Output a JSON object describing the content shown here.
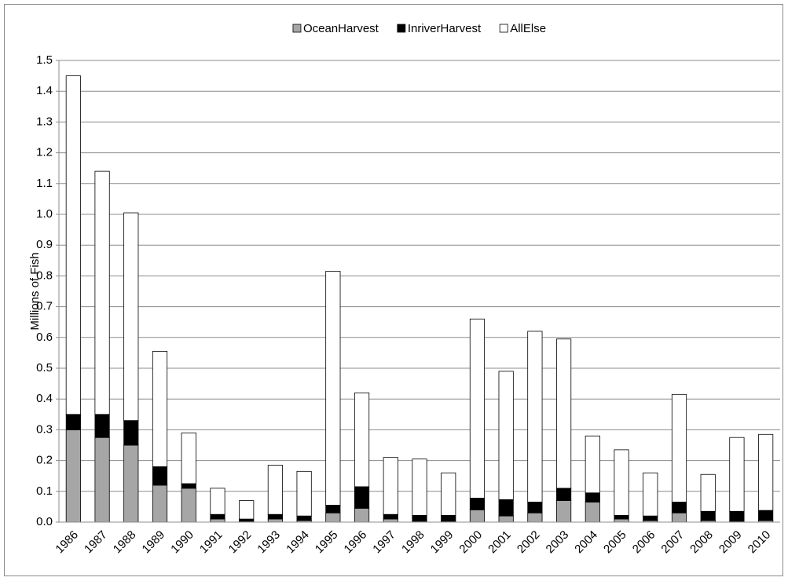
{
  "chart_data": {
    "type": "stacked_bar",
    "y_label": "Millions of Fish",
    "categories": [
      "1986",
      "1987",
      "1988",
      "1989",
      "1990",
      "1991",
      "1992",
      "1993",
      "1994",
      "1995",
      "1996",
      "1997",
      "1998",
      "1999",
      "2000",
      "2001",
      "2002",
      "2003",
      "2004",
      "2005",
      "2006",
      "2007",
      "2008",
      "2009",
      "2010"
    ],
    "series": [
      {
        "name": "OceanHarvest",
        "color": "#a6a6a6",
        "values": [
          0.3,
          0.275,
          0.25,
          0.12,
          0.11,
          0.01,
          0.003,
          0.01,
          0.005,
          0.03,
          0.045,
          0.01,
          0.003,
          0.003,
          0.04,
          0.02,
          0.03,
          0.07,
          0.065,
          0.01,
          0.005,
          0.03,
          0.005,
          0.003,
          0.005
        ]
      },
      {
        "name": "InriverHarvest",
        "color": "#000000",
        "values": [
          0.05,
          0.075,
          0.08,
          0.06,
          0.015,
          0.015,
          0.007,
          0.015,
          0.015,
          0.025,
          0.07,
          0.015,
          0.019,
          0.019,
          0.038,
          0.053,
          0.035,
          0.04,
          0.03,
          0.012,
          0.015,
          0.035,
          0.03,
          0.032,
          0.033
        ]
      },
      {
        "name": "AllElse",
        "color": "#ffffff",
        "values": [
          1.1,
          0.79,
          0.675,
          0.375,
          0.165,
          0.085,
          0.06,
          0.16,
          0.145,
          0.76,
          0.305,
          0.185,
          0.183,
          0.138,
          0.582,
          0.417,
          0.555,
          0.485,
          0.185,
          0.213,
          0.14,
          0.35,
          0.12,
          0.24,
          0.247
        ]
      }
    ],
    "ylim": [
      0,
      1.5
    ],
    "yticks": [
      {
        "value": 0,
        "label": "0.0"
      },
      0.1,
      0.2,
      0.3,
      0.4,
      0.5,
      0.6,
      0.7,
      0.8,
      0.9,
      {
        "value": 1,
        "label": "1.0"
      },
      1.1,
      1.2,
      1.3,
      1.4,
      1.5
    ],
    "grid": true,
    "legend": "top"
  }
}
